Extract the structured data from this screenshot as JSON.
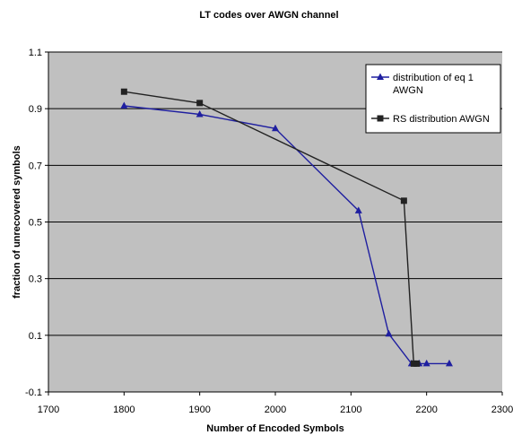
{
  "chart_data": {
    "type": "line",
    "title": "LT codes over AWGN channel",
    "xlabel": "Number of Encoded Symbols",
    "ylabel": "fraction of unrecovered symbols",
    "xlim": [
      1700,
      2300
    ],
    "ylim": [
      -0.1,
      1.1
    ],
    "x_ticks": [
      "1700",
      "1800",
      "1900",
      "2000",
      "2100",
      "2200",
      "2300"
    ],
    "y_ticks": [
      "-0.1",
      "0.1",
      "0.3",
      "0.5",
      "0.7",
      "0.9",
      "1.1"
    ],
    "grid": "horizontal",
    "background_color": "#c0c0c0",
    "legend_position": "top-right",
    "series": [
      {
        "name": "distribution of eq 1 AWGN",
        "legend_lines": [
          "distribution of eq 1",
          "AWGN"
        ],
        "color": "#1f1fa0",
        "marker": "triangle",
        "x": [
          1800,
          1900,
          2000,
          2110,
          2150,
          2180,
          2190,
          2200,
          2230
        ],
        "y": [
          0.91,
          0.88,
          0.83,
          0.54,
          0.105,
          0.0,
          0.0,
          0.0,
          0.0
        ]
      },
      {
        "name": "RS distribution AWGN",
        "legend_lines": [
          "RS distribution AWGN"
        ],
        "color": "#222222",
        "marker": "square",
        "x": [
          1800,
          1900,
          2170,
          2183,
          2187
        ],
        "y": [
          0.96,
          0.92,
          0.575,
          0.0,
          0.0
        ]
      }
    ]
  }
}
